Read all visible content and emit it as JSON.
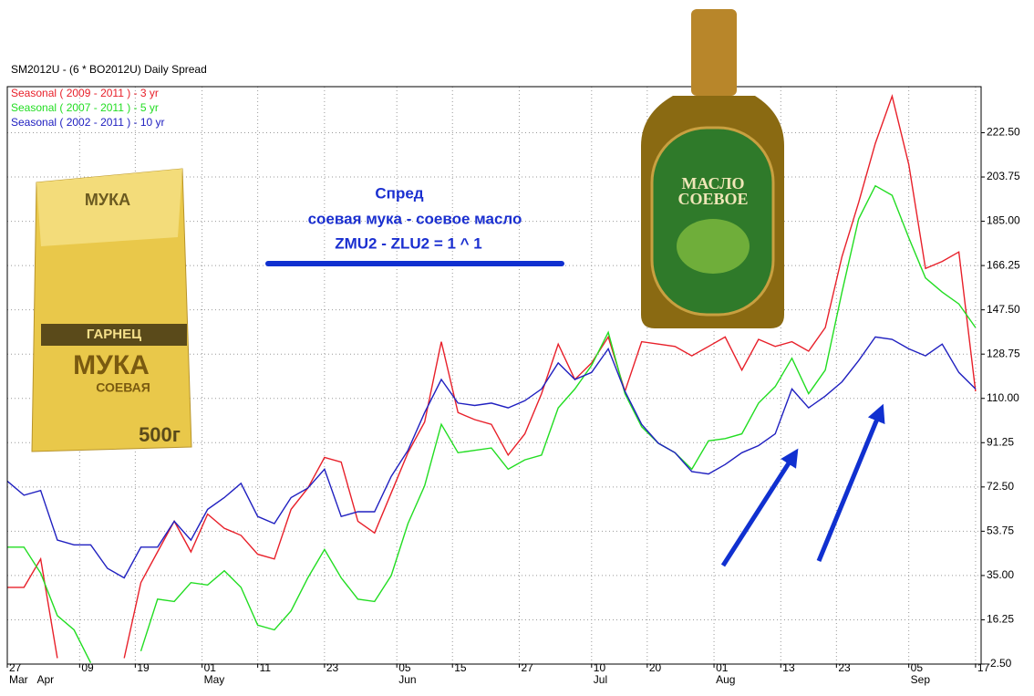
{
  "chart_data": {
    "type": "line",
    "title": "SM2012U - (6 * BO2012U) Daily Spread",
    "legend": "upper left",
    "grid": true,
    "x": [
      "03-27",
      "03-30",
      "04-02",
      "04-05",
      "04-08",
      "04-11",
      "04-14",
      "04-17",
      "04-20",
      "04-23",
      "04-26",
      "04-29",
      "05-02",
      "05-05",
      "05-08",
      "05-11",
      "05-14",
      "05-17",
      "05-20",
      "05-23",
      "05-26",
      "05-29",
      "06-01",
      "06-04",
      "06-07",
      "06-10",
      "06-13",
      "06-16",
      "06-19",
      "06-22",
      "06-25",
      "06-28",
      "07-01",
      "07-04",
      "07-07",
      "07-10",
      "07-13",
      "07-16",
      "07-19",
      "07-22",
      "07-25",
      "07-28",
      "07-31",
      "08-03",
      "08-06",
      "08-09",
      "08-12",
      "08-15",
      "08-18",
      "08-21",
      "08-24",
      "08-27",
      "08-30",
      "09-02",
      "09-05",
      "09-08",
      "09-11",
      "09-14",
      "09-17"
    ],
    "xlim": [
      "03-27",
      "09-18"
    ],
    "xticks": [
      {
        "value": "03-27",
        "label": "27"
      },
      {
        "value": "04-09",
        "label": "09"
      },
      {
        "value": "04-19",
        "label": "19"
      },
      {
        "value": "05-01",
        "label": "01"
      },
      {
        "value": "05-11",
        "label": "11"
      },
      {
        "value": "05-23",
        "label": "23"
      },
      {
        "value": "06-05",
        "label": "05"
      },
      {
        "value": "06-15",
        "label": "15"
      },
      {
        "value": "06-27",
        "label": "27"
      },
      {
        "value": "07-10",
        "label": "10"
      },
      {
        "value": "07-20",
        "label": "20"
      },
      {
        "value": "08-01",
        "label": "01"
      },
      {
        "value": "08-13",
        "label": "13"
      },
      {
        "value": "08-23",
        "label": "23"
      },
      {
        "value": "09-05",
        "label": "05"
      },
      {
        "value": "09-17",
        "label": "17"
      }
    ],
    "month_labels": [
      {
        "value": "03-27",
        "label": "Mar"
      },
      {
        "value": "04-01",
        "label": "Apr"
      },
      {
        "value": "05-01",
        "label": "May"
      },
      {
        "value": "06-05",
        "label": "Jun"
      },
      {
        "value": "07-10",
        "label": "Jul"
      },
      {
        "value": "08-01",
        "label": "Aug"
      },
      {
        "value": "09-05",
        "label": "Sep"
      }
    ],
    "ylim": [
      -2.5,
      242
    ],
    "yticks": [
      {
        "value": -2.5,
        "label": "-2.50"
      },
      16.25,
      {
        "value": 35,
        "label": "35.00"
      },
      53.75,
      {
        "value": 72.5,
        "label": "72.50"
      },
      91.25,
      {
        "value": 110,
        "label": "110.00"
      },
      128.75,
      {
        "value": 147.5,
        "label": "147.50"
      },
      166.25,
      {
        "value": 185,
        "label": "185.00"
      },
      203.75,
      {
        "value": 222.5,
        "label": "222.50"
      }
    ],
    "series": [
      {
        "name": "Seasonal ( 2009 - 2011 ) - 3 yr",
        "color": "#e8202a",
        "values": [
          30,
          30,
          42,
          0,
          null,
          null,
          null,
          0,
          32,
          45,
          58,
          45,
          61,
          55,
          52,
          44,
          42,
          63,
          72,
          85,
          83,
          58,
          53,
          70,
          87,
          100,
          134,
          104,
          101,
          99,
          86,
          95,
          112,
          133,
          118,
          125,
          136,
          113,
          134,
          133,
          132,
          128,
          132,
          136,
          122,
          135,
          132,
          134,
          130,
          140,
          170,
          193,
          218,
          238,
          209,
          165,
          168,
          172,
          113
        ]
      },
      {
        "name": "Seasonal ( 2007 - 2011 ) - 5 yr",
        "color": "#22dd22",
        "values": [
          47,
          47,
          36,
          18,
          12,
          -2,
          null,
          null,
          3,
          25,
          24,
          32,
          31,
          37,
          30,
          14,
          12,
          20,
          34,
          46,
          34,
          25,
          24,
          35,
          57,
          73,
          99,
          87,
          88,
          89,
          80,
          84,
          86,
          106,
          114,
          124,
          138,
          112,
          98,
          91,
          87,
          80,
          92,
          93,
          95,
          108,
          115,
          127,
          112,
          122,
          155,
          186,
          200,
          196,
          178,
          161,
          155,
          150,
          140
        ]
      },
      {
        "name": "Seasonal ( 2002 - 2011 ) - 10 yr",
        "color": "#2020c0",
        "values": [
          75,
          69,
          71,
          50,
          48,
          48,
          38,
          34,
          47,
          47,
          58,
          50,
          63,
          68,
          74,
          60,
          57,
          68,
          72,
          80,
          60,
          62,
          62,
          77,
          88,
          104,
          118,
          108,
          107,
          108,
          106,
          109,
          114,
          125,
          118,
          121,
          131,
          113,
          99,
          91,
          87,
          79,
          78,
          82,
          87,
          90,
          95,
          114,
          106,
          111,
          117,
          126,
          136,
          135,
          131,
          128,
          133,
          121,
          114
        ]
      }
    ],
    "annotations": [
      "Спред",
      "соевая мука - соевое масло",
      "ZMU2 - ZLU2 = 1 ^ 1"
    ],
    "product_labels": {
      "flour": [
        "МУКА",
        "ГАРНЕЦ",
        "МУКА",
        "СОЕВАЯ",
        "500г"
      ],
      "oil": [
        "МАСЛО",
        "СОЕВОЕ"
      ]
    }
  }
}
